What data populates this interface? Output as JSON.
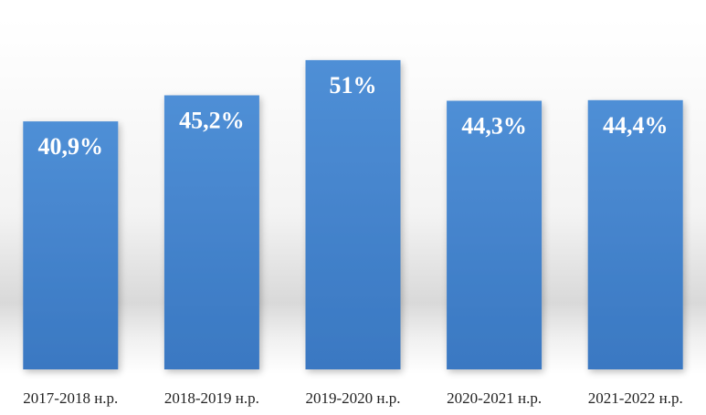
{
  "chart_data": {
    "type": "bar",
    "categories": [
      "2017-2018 н.р.",
      "2018-2019 н.р.",
      "2019-2020 н.р.",
      "2020-2021 н.р.",
      "2021-2022 н.р."
    ],
    "values": [
      40.9,
      45.2,
      51,
      44.3,
      44.4
    ],
    "data_labels": [
      "40,9%",
      "45,2%",
      "51%",
      "44,3%",
      "44,4%"
    ],
    "title": "",
    "xlabel": "",
    "ylabel": "",
    "ylim": [
      0,
      53.7
    ],
    "grid": false,
    "legend": "none",
    "bar_color": "#4f8fd6",
    "bar_color_dark": "#3a78c2",
    "label_color": "#ffffff"
  }
}
